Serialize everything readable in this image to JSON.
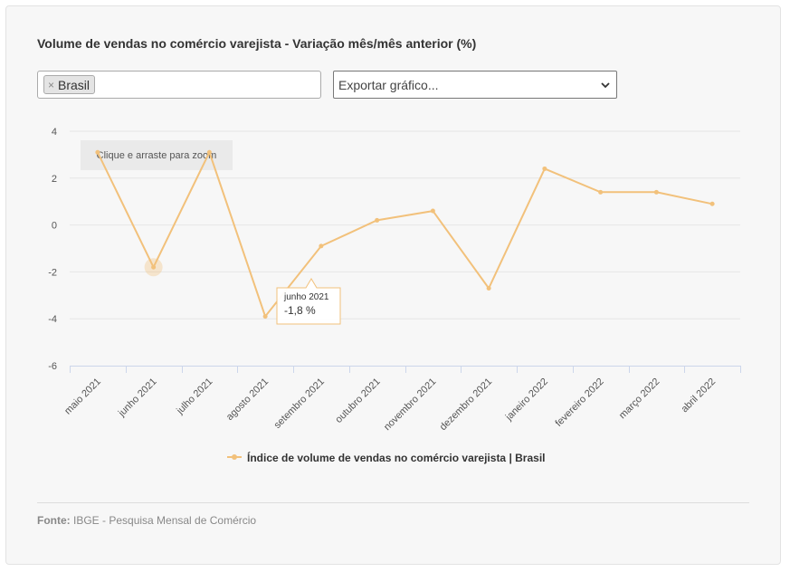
{
  "title": "Volume de vendas no comércio varejista - Variação mês/mês anterior (%)",
  "filter": {
    "chip_label": "Brasil",
    "remove_symbol": "×"
  },
  "export": {
    "label": "Exportar gráfico..."
  },
  "zoom_hint": "Clique e arraste para zoom",
  "tooltip": {
    "category": "junho 2021",
    "value_text": "-1,8 %"
  },
  "source": {
    "prefix": "Fonte:",
    "text": "IBGE - Pesquisa Mensal de Comércio"
  },
  "colors": {
    "series": "#f2c17b",
    "grid": "#e6e6e6",
    "axis": "#ccd6eb",
    "tooltip_border": "#f2c17b"
  },
  "chart_data": {
    "type": "line",
    "categories": [
      "maio 2021",
      "junho 2021",
      "julho 2021",
      "agosto 2021",
      "setembro 2021",
      "outubro 2021",
      "novembro 2021",
      "dezembro 2021",
      "janeiro 2022",
      "fevereiro 2022",
      "março 2022",
      "abril 2022"
    ],
    "series": [
      {
        "name": "Índice de volume de vendas no comércio varejista | Brasil",
        "values": [
          3.1,
          -1.8,
          3.1,
          -3.9,
          -0.9,
          0.2,
          0.6,
          -2.7,
          2.4,
          1.4,
          1.4,
          0.9
        ]
      }
    ],
    "ylim": [
      -6,
      4
    ],
    "yticks": [
      4,
      2,
      0,
      -2,
      -4,
      -6
    ],
    "grid": true,
    "legend": "bottom-center",
    "highlighted_index": 1
  }
}
